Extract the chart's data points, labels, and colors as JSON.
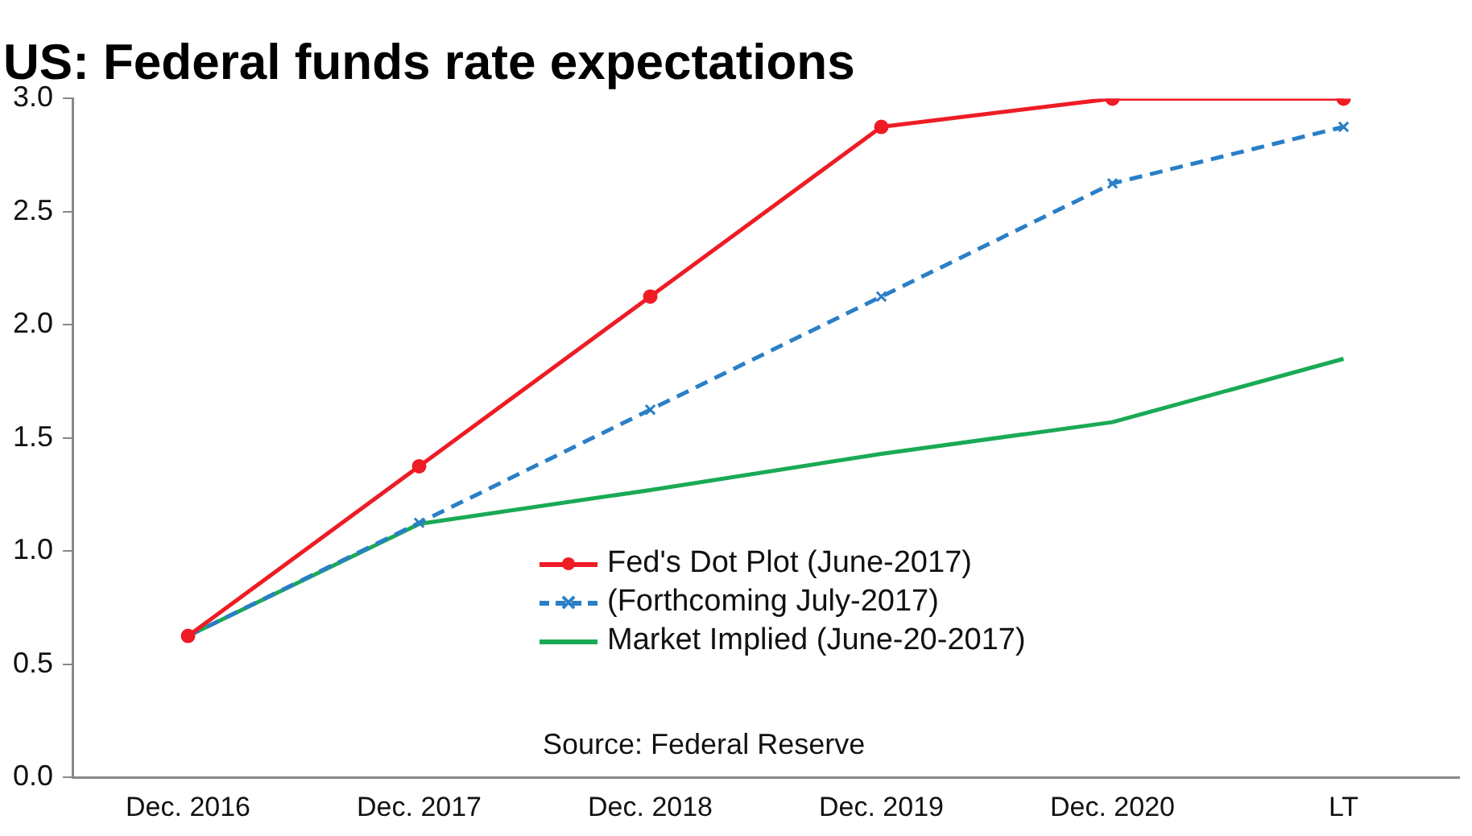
{
  "chart_data": {
    "type": "line",
    "title": "US: Federal funds rate expectations",
    "categories": [
      "Dec. 2016",
      "Dec. 2017",
      "Dec. 2018",
      "Dec. 2019",
      "Dec. 2020",
      "LT"
    ],
    "series": [
      {
        "name": "Fed's Dot Plot (June-2017)",
        "color": "#ee1c25",
        "values": [
          0.625,
          1.375,
          2.125,
          2.875,
          3.0,
          3.0
        ],
        "marker": "circle",
        "line_style": "solid"
      },
      {
        "name": "(Forthcoming July-2017)",
        "color": "#2a7fc6",
        "values": [
          0.625,
          1.125,
          1.625,
          2.125,
          2.625,
          2.875
        ],
        "marker": "cross",
        "line_style": "dashed"
      },
      {
        "name": "Market Implied (June-20-2017)",
        "color": "#1aaa55",
        "values": [
          0.625,
          1.12,
          1.27,
          1.43,
          1.57,
          1.85
        ],
        "marker": "none",
        "line_style": "solid"
      }
    ],
    "ylim": [
      0,
      3
    ],
    "yticks": [
      {
        "value": 0,
        "label": "0.0"
      },
      0.5,
      {
        "value": 1,
        "label": "1.0"
      },
      1.5,
      {
        "value": 2,
        "label": "2.0"
      },
      2.5,
      {
        "value": 3,
        "label": "3.0"
      }
    ],
    "grid": false,
    "legend": "bottom right",
    "annotations": [
      "Source: Federal Reserve"
    ]
  }
}
